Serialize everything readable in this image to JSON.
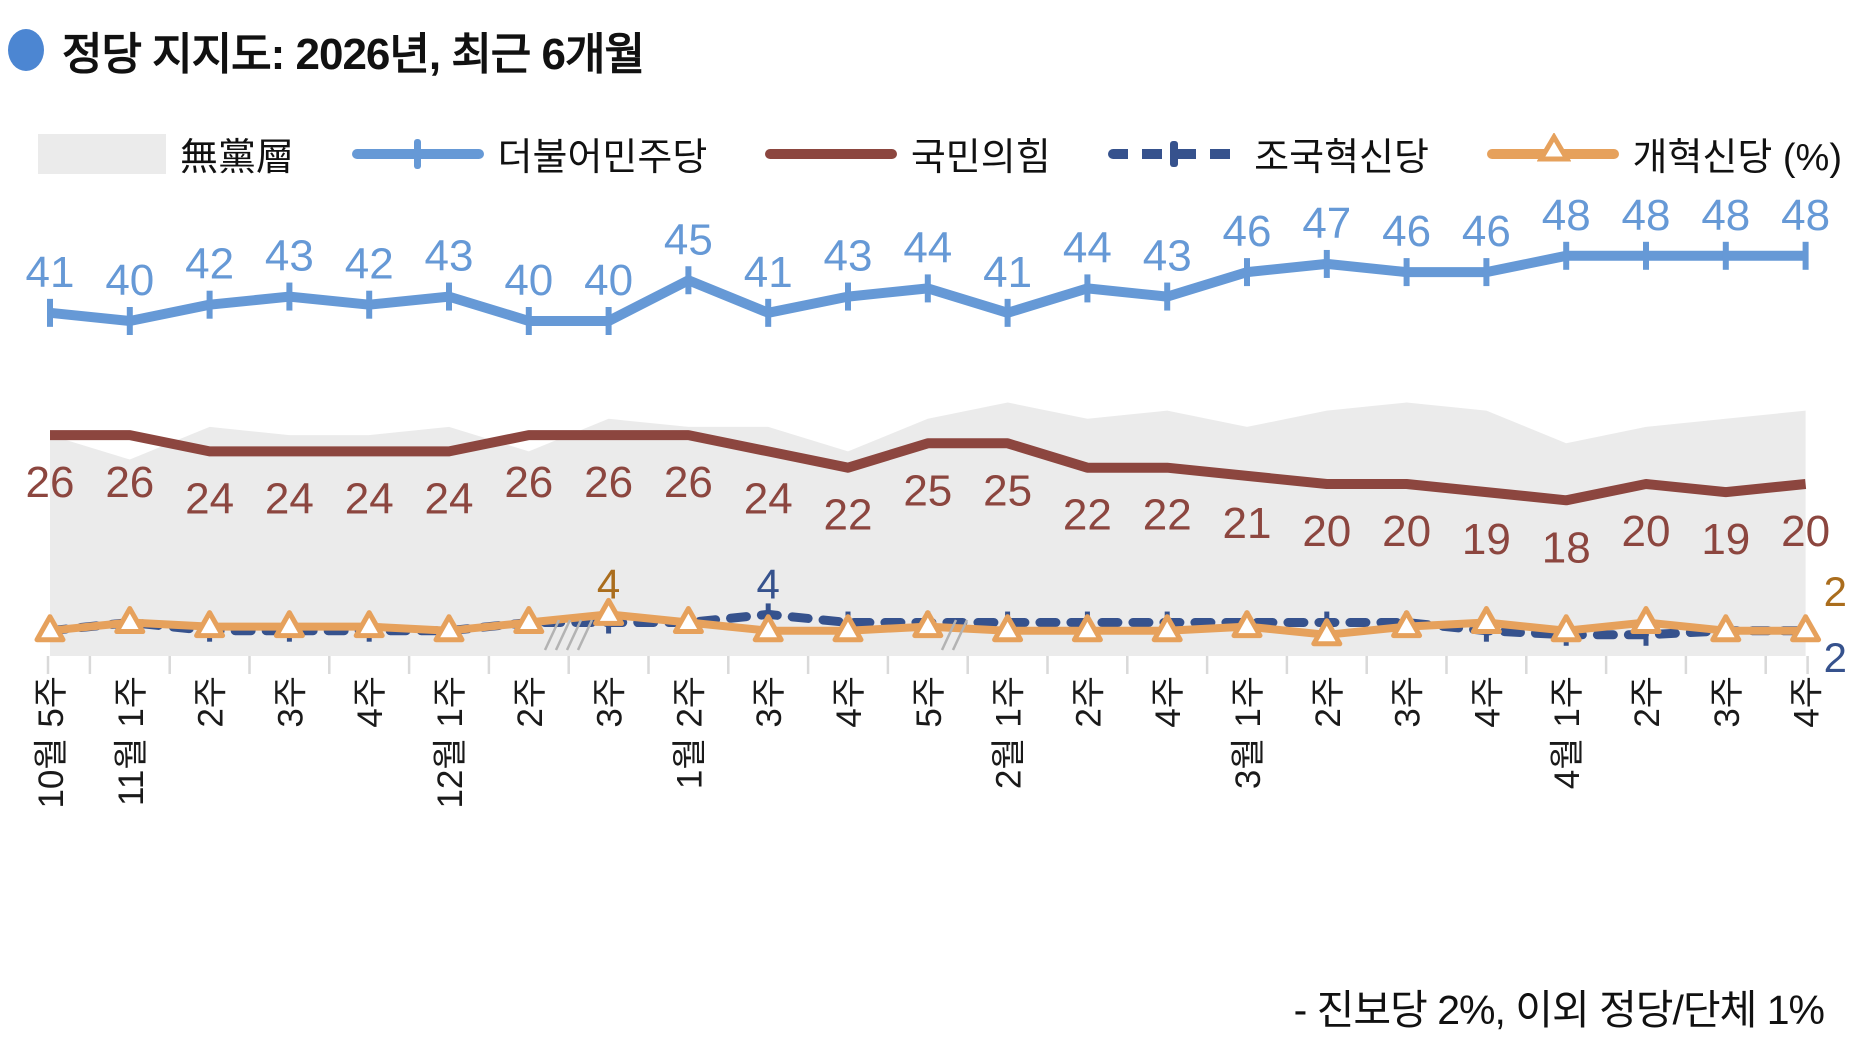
{
  "title": {
    "text": "정당 지지도: 2026년, 최근 6개월",
    "bullet_color": "#4c86d2"
  },
  "legend": {
    "items": [
      {
        "label": "無黨層",
        "swatch": "gray-area",
        "color": "#ebebeb"
      },
      {
        "label": "더불어민주당",
        "swatch": "line-tick",
        "color": "#6699d6"
      },
      {
        "label": "국민의힘",
        "swatch": "line",
        "color": "#8c463f"
      },
      {
        "label": "조국혁신당",
        "swatch": "dashed-plus",
        "color": "#36528d"
      },
      {
        "label": "개혁신당 (%)",
        "swatch": "line-triangle",
        "color": "#e6a15c"
      }
    ]
  },
  "footnote": {
    "text": "- 진보당 2%, 이외 정당/단체 1%"
  },
  "chart_data": {
    "type": "line",
    "title": "정당 지지도: 2026년, 최근 6개월",
    "unit": "%",
    "grid": false,
    "legend_position": "top",
    "ylim": [
      0,
      55
    ],
    "categories": [
      "10월 5주",
      "11월 1주",
      "2주",
      "3주",
      "4주",
      "12월 1주",
      "2주",
      "3주",
      "1월 2주",
      "3주",
      "4주",
      "5주",
      "2월 1주",
      "2주",
      "4주",
      "3월 1주",
      "2주",
      "3주",
      "4주",
      "4월 1주",
      "2주",
      "3주",
      "4주"
    ],
    "axis_breaks": [
      {
        "between": [
          7,
          8
        ]
      },
      {
        "between": [
          13,
          14
        ]
      }
    ],
    "series": [
      {
        "name": "無黨層",
        "type": "area",
        "color": "#ebebeb",
        "estimated": true,
        "values": [
          26,
          23,
          27,
          26,
          26,
          27,
          24,
          28,
          27,
          27,
          24,
          28,
          30,
          28,
          29,
          27,
          29,
          30,
          29,
          25,
          27,
          28,
          29
        ]
      },
      {
        "name": "더불어민주당",
        "type": "line",
        "color": "#6699d6",
        "marker": "tick",
        "labels": "all",
        "values": [
          41,
          40,
          42,
          43,
          42,
          43,
          40,
          40,
          45,
          41,
          43,
          44,
          41,
          44,
          43,
          46,
          47,
          46,
          46,
          48,
          48,
          48,
          48
        ]
      },
      {
        "name": "국민의힘",
        "type": "line",
        "color": "#8c463f",
        "marker": "none",
        "labels": "all",
        "values": [
          26,
          26,
          24,
          24,
          24,
          24,
          26,
          26,
          26,
          24,
          22,
          25,
          25,
          22,
          22,
          21,
          20,
          20,
          19,
          18,
          20,
          19,
          20
        ]
      },
      {
        "name": "조국혁신당",
        "type": "line",
        "dashed": true,
        "color": "#36528d",
        "label_color": "#36528d",
        "marker": "tick",
        "estimated_between_labels": true,
        "values": [
          2,
          3,
          2,
          2,
          2,
          2,
          3,
          3,
          3,
          4,
          3,
          3,
          3,
          3,
          3,
          3,
          3,
          3,
          2,
          1.5,
          1.5,
          2,
          2
        ],
        "point_labels": [
          {
            "index": 9,
            "text": "4",
            "position": "above"
          },
          {
            "index": 22,
            "text": "2",
            "position": "right-below"
          }
        ]
      },
      {
        "name": "개혁신당",
        "type": "line",
        "color": "#e6a15c",
        "label_color": "#aa6d1d",
        "marker": "triangle",
        "estimated_between_labels": true,
        "values": [
          2,
          3,
          2.5,
          2.5,
          2.5,
          2,
          3,
          4,
          3,
          2,
          2,
          2.5,
          2,
          2,
          2,
          2.5,
          1.5,
          2.5,
          3,
          2,
          3,
          2,
          2
        ],
        "point_labels": [
          {
            "index": 7,
            "text": "4",
            "position": "above"
          },
          {
            "index": 22,
            "text": "2",
            "position": "right-above"
          }
        ]
      }
    ],
    "footnote": "- 진보당 2%, 이외 정당/단체 1%"
  }
}
